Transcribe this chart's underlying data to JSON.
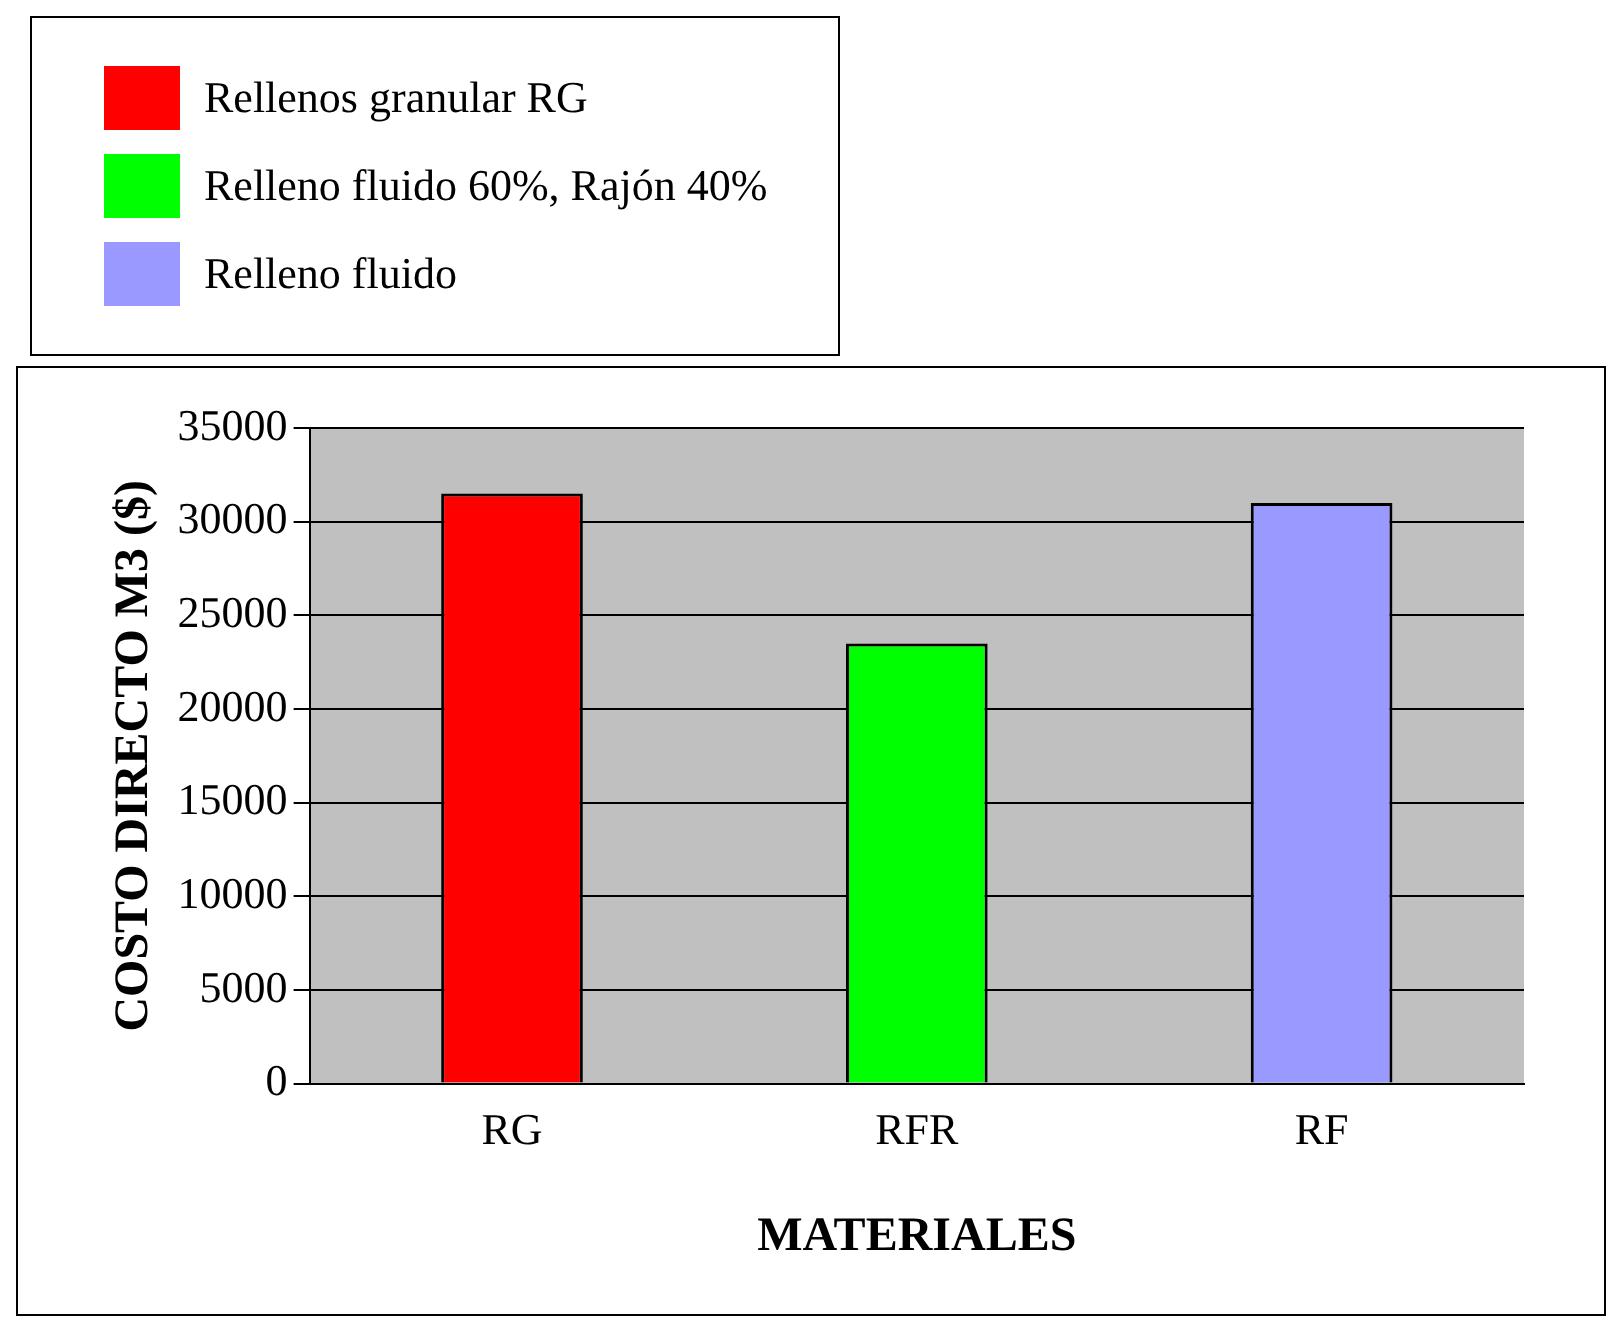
{
  "chart_data": {
    "type": "bar",
    "xlabel": "MATERIALES",
    "ylabel": "COSTO DIRECTO M3 ($)",
    "categories": [
      "RG",
      "RFR",
      "RF"
    ],
    "series": [
      {
        "name": "Rellenos granular RG",
        "color": "#ff0000",
        "values": [
          31500,
          null,
          null
        ]
      },
      {
        "name": "Relleno fluido 60%, Rajón 40%",
        "color": "#00ff00",
        "values": [
          null,
          23500,
          null
        ]
      },
      {
        "name": "Relleno fluido",
        "color": "#9999ff",
        "values": [
          null,
          null,
          31000
        ]
      }
    ],
    "ylim": [
      0,
      35000
    ],
    "yticks": [
      0,
      5000,
      10000,
      15000,
      20000,
      25000,
      30000,
      35000
    ],
    "grid": "y",
    "legend": "top left"
  }
}
